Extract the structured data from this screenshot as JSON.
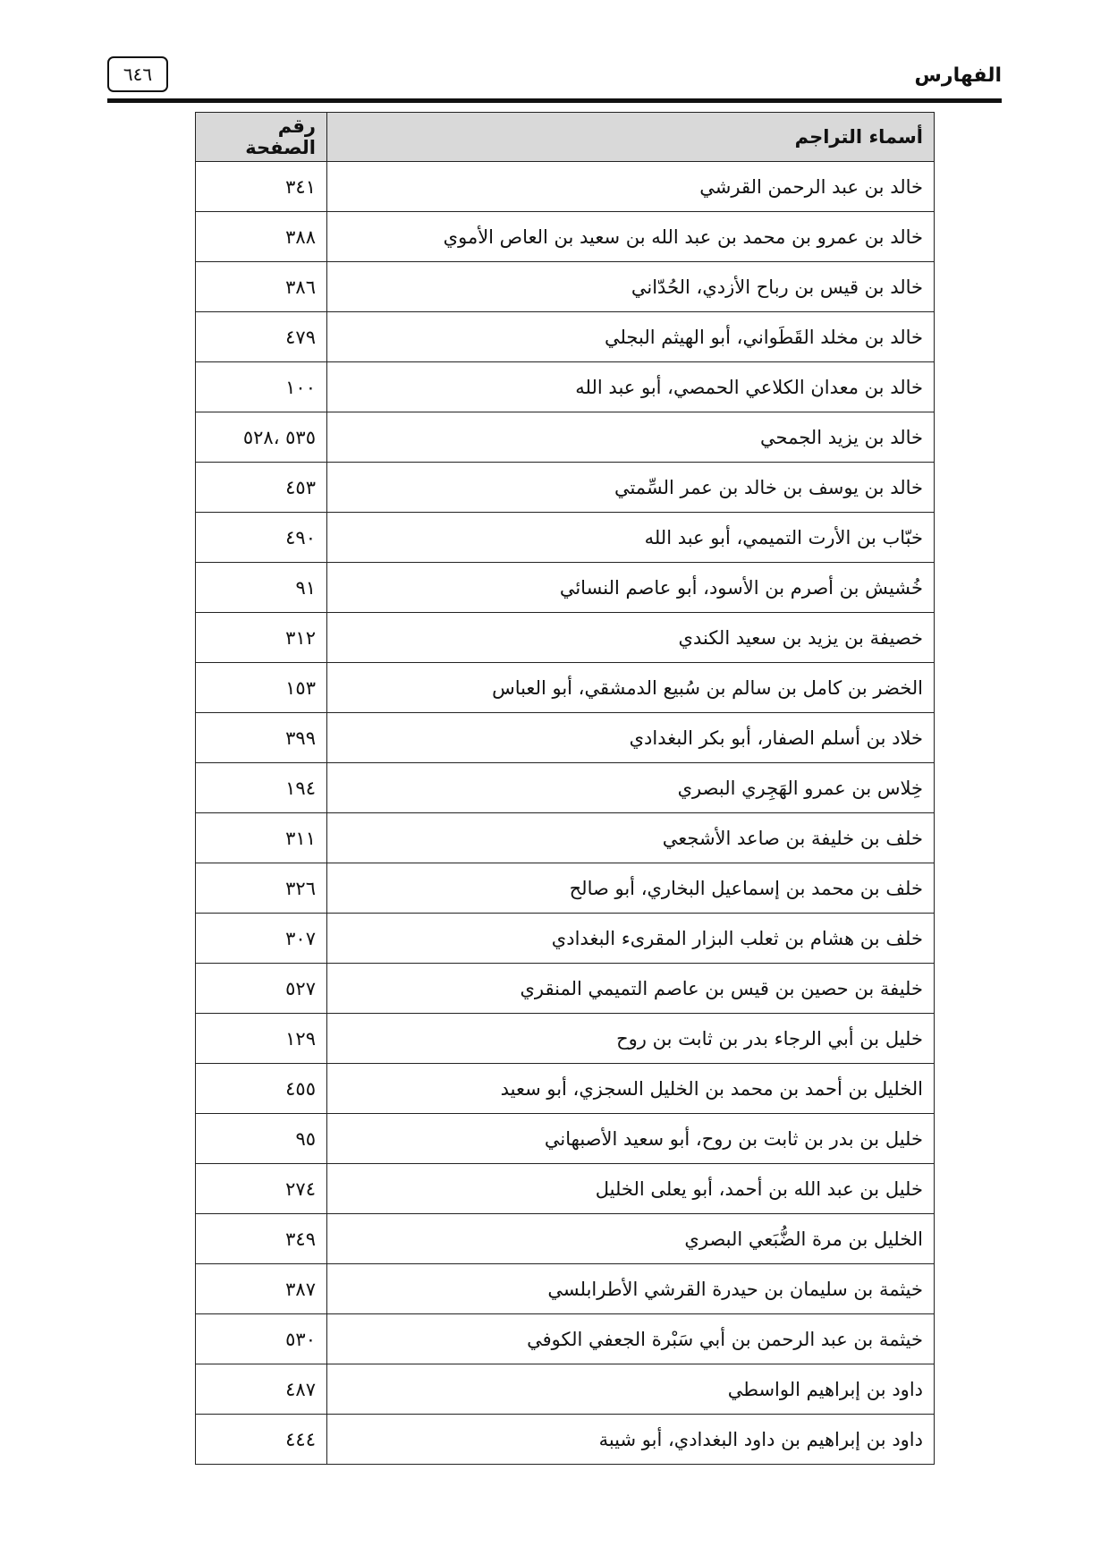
{
  "header": {
    "running_title": "الفهارس",
    "page_number": "٦٤٦"
  },
  "table": {
    "columns": [
      "أسماء التراجم",
      "رقم الصفحة"
    ],
    "rows": [
      {
        "name": "خالد بن عبد الرحمن القرشي",
        "page": "٣٤١"
      },
      {
        "name": "خالد بن عمرو بن محمد بن عبد الله بن سعيد بن العاص الأموي",
        "page": "٣٨٨"
      },
      {
        "name": "خالد بن قيس بن رباح الأزدي، الحُدّاني",
        "page": "٣٨٦"
      },
      {
        "name": "خالد بن مخلد القَطَواني، أبو الهيثم البجلي",
        "page": "٤٧٩"
      },
      {
        "name": "خالد بن معدان الكلاعي الحمصي، أبو عبد الله",
        "page": "١٠٠"
      },
      {
        "name": "خالد بن يزيد الجمحي",
        "page": "٥٣٥ ،٥٢٨"
      },
      {
        "name": "خالد بن يوسف بن خالد بن عمر السِّمتي",
        "page": "٤٥٣"
      },
      {
        "name": "خبّاب بن الأرت التميمي، أبو عبد الله",
        "page": "٤٩٠"
      },
      {
        "name": "خُشيش بن أصرم بن الأسود، أبو عاصم النسائي",
        "page": "٩١"
      },
      {
        "name": "خصيفة بن يزيد بن سعيد الكندي",
        "page": "٣١٢"
      },
      {
        "name": "الخضر بن كامل بن سالم بن سُبيع الدمشقي، أبو العباس",
        "page": "١٥٣"
      },
      {
        "name": "خلاد بن أسلم الصفار، أبو بكر البغدادي",
        "page": "٣٩٩"
      },
      {
        "name": "خِلاس بن عمرو الهَجِري البصري",
        "page": "١٩٤"
      },
      {
        "name": "خلف بن خليفة بن صاعد الأشجعي",
        "page": "٣١١"
      },
      {
        "name": "خلف بن محمد بن إسماعيل البخاري، أبو صالح",
        "page": "٣٢٦"
      },
      {
        "name": "خلف بن هشام بن ثعلب البزار المقرىء البغدادي",
        "page": "٣٠٧"
      },
      {
        "name": "خليفة بن حصين بن قيس بن عاصم التميمي المنقري",
        "page": "٥٢٧"
      },
      {
        "name": "خليل بن أبي الرجاء بدر بن ثابت بن روح",
        "page": "١٢٩"
      },
      {
        "name": "الخليل بن أحمد بن محمد بن الخليل السجزي، أبو سعيد",
        "page": "٤٥٥"
      },
      {
        "name": "خليل بن بدر بن ثابت بن روح، أبو سعيد الأصبهاني",
        "page": "٩٥"
      },
      {
        "name": "خليل بن عبد الله بن أحمد، أبو يعلى الخليل",
        "page": "٢٧٤"
      },
      {
        "name": "الخليل بن مرة الضُّبَعي البصري",
        "page": "٣٤٩"
      },
      {
        "name": "خيثمة بن سليمان بن حيدرة القرشي الأطرابلسي",
        "page": "٣٨٧"
      },
      {
        "name": "خيثمة بن عبد الرحمن بن أبي سَبْرة الجعفي الكوفي",
        "page": "٥٣٠"
      },
      {
        "name": "داود بن إبراهيم الواسطي",
        "page": "٤٨٧"
      },
      {
        "name": "داود بن إبراهيم بن داود البغدادي، أبو شيبة",
        "page": "٤٤٤"
      }
    ]
  }
}
